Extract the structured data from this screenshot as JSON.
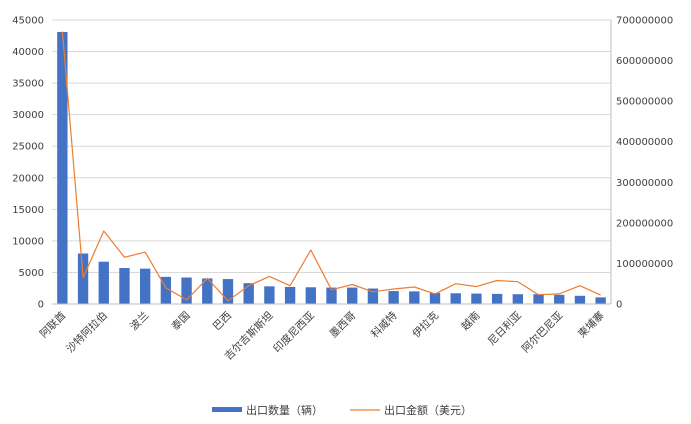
{
  "chart_data": {
    "type": "bar",
    "categories": [
      "阿联酋",
      "",
      "沙特阿拉伯",
      "",
      "波兰",
      "",
      "泰国",
      "",
      "巴西",
      "",
      "吉尔吉斯斯坦",
      "",
      "印度尼西亚",
      "",
      "墨西哥",
      "",
      "科威特",
      "",
      "伊拉克",
      "",
      "越南",
      "",
      "尼日利亚",
      "",
      "阿尔巴尼亚",
      "",
      "柬埔寨"
    ],
    "series": [
      {
        "name": "出口数量（辆）",
        "axis": "left",
        "chart_type": "bar",
        "color": "#4472c4",
        "values": [
          43100,
          8000,
          6700,
          5700,
          5600,
          4300,
          4200,
          4050,
          3950,
          3300,
          2800,
          2700,
          2650,
          2600,
          2600,
          2450,
          2050,
          2000,
          1750,
          1700,
          1650,
          1600,
          1550,
          1550,
          1450,
          1300,
          1050
        ]
      },
      {
        "name": "出口金额（美元）",
        "axis": "right",
        "chart_type": "line",
        "color": "#ed7d31",
        "values": [
          672000000,
          65000000,
          180000000,
          115000000,
          128000000,
          40000000,
          10000000,
          63000000,
          8000000,
          45000000,
          68000000,
          45000000,
          133000000,
          35000000,
          48000000,
          30000000,
          37000000,
          42000000,
          25000000,
          50000000,
          43000000,
          58000000,
          55000000,
          23000000,
          25000000,
          45000000,
          22000000
        ]
      }
    ],
    "y_left": {
      "min": 0,
      "max": 45000,
      "step": 5000,
      "ticks": [
        "0",
        "5000",
        "10000",
        "15000",
        "20000",
        "25000",
        "30000",
        "35000",
        "40000",
        "45000"
      ]
    },
    "y_right": {
      "min": 0,
      "max": 700000000,
      "step": 100000000,
      "ticks": [
        "0",
        "100000000",
        "200000000",
        "300000000",
        "400000000",
        "500000000",
        "600000000",
        "700000000"
      ]
    },
    "grid": true,
    "legend_position": "bottom"
  }
}
